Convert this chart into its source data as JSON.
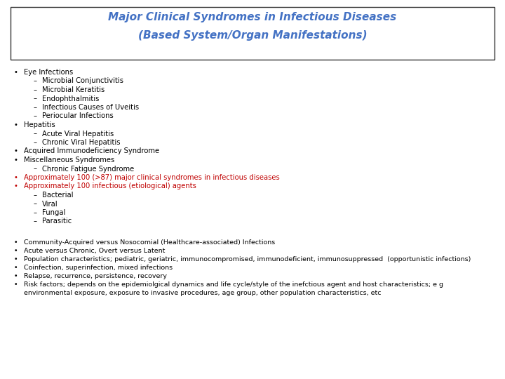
{
  "title_line1": "Major Clinical Syndromes in Infectious Diseases",
  "title_line2": "(Based System/Organ Manifestations)",
  "title_color": "#4472C4",
  "title_fontsize": 11,
  "bg_color": "#FFFFFF",
  "border_color": "#333333",
  "body_fontsize": 7.2,
  "body_fontsize2": 6.8,
  "section1": [
    {
      "level": 0,
      "text": "Eye Infections",
      "color": "#000000"
    },
    {
      "level": 1,
      "text": "Microbial Conjunctivitis",
      "color": "#000000"
    },
    {
      "level": 1,
      "text": "Microbial Keratitis",
      "color": "#000000"
    },
    {
      "level": 1,
      "text": "Endophthalmitis",
      "color": "#000000"
    },
    {
      "level": 1,
      "text": "Infectious Causes of Uveitis",
      "color": "#000000"
    },
    {
      "level": 1,
      "text": "Periocular Infections",
      "color": "#000000"
    },
    {
      "level": 0,
      "text": "Hepatitis",
      "color": "#000000"
    },
    {
      "level": 1,
      "text": "Acute Viral Hepatitis",
      "color": "#000000"
    },
    {
      "level": 1,
      "text": "Chronic Viral Hepatitis",
      "color": "#000000"
    },
    {
      "level": 0,
      "text": "Acquired Immunodeficiency Syndrome",
      "color": "#000000"
    },
    {
      "level": 0,
      "text": "Miscellaneous Syndromes",
      "color": "#000000"
    },
    {
      "level": 1,
      "text": "Chronic Fatigue Syndrome",
      "color": "#000000"
    },
    {
      "level": 0,
      "text": "Approximately 100 (>87) major clinical syndromes in infectious diseases",
      "color": "#C00000"
    },
    {
      "level": 0,
      "text": "Approximately 100 infectious (etiological) agents",
      "color": "#C00000"
    },
    {
      "level": 1,
      "text": "Bacterial",
      "color": "#000000"
    },
    {
      "level": 1,
      "text": "Viral",
      "color": "#000000"
    },
    {
      "level": 1,
      "text": "Fungal",
      "color": "#000000"
    },
    {
      "level": 1,
      "text": "Parasitic",
      "color": "#000000"
    }
  ],
  "section2": [
    {
      "text": "Community-Acquired versus Nosocomial (Healthcare-associated) Infections"
    },
    {
      "text": "Acute versus Chronic, Overt versus Latent"
    },
    {
      "text": "Population characteristics; pediatric, geriatric, immunocompromised, immunodeficient, immunosuppressed  (opportunistic infections)"
    },
    {
      "text": "Coinfection, superinfection, mixed infections"
    },
    {
      "text": "Relapse, recurrence, persistence, recovery"
    },
    {
      "text": "Risk factors; depends on the epidemiolgical dynamics and life cycle/style of the inefctious agent and host characteristics; e g\nenvironmental exposure, exposure to invasive procedures, age group, other population characteristics, etc"
    }
  ]
}
